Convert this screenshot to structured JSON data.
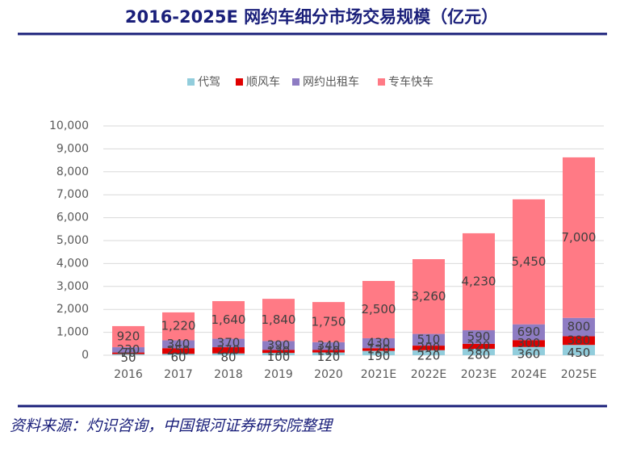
{
  "chart_data": {
    "type": "stacked_bar",
    "title": "2016-2025E 网约车细分市场交易规模（亿元）",
    "source": "资料来源：灼识咨询，中国银河证券研究院整理",
    "categories": [
      "2016",
      "2017",
      "2018",
      "2019",
      "2020",
      "2021E",
      "2022E",
      "2023E",
      "2024E",
      "2025E"
    ],
    "series": [
      {
        "name": "代驾",
        "color": "#92cddc",
        "values": [
          50,
          60,
          80,
          100,
          120,
          190,
          220,
          280,
          360,
          450
        ]
      },
      {
        "name": "顺风车",
        "color": "#e00000",
        "values": [
          70,
          250,
          270,
          130,
          110,
          120,
          200,
          220,
          300,
          380
        ]
      },
      {
        "name": "网约出租车",
        "color": "#8e7cc3",
        "values": [
          230,
          340,
          370,
          390,
          340,
          430,
          510,
          590,
          690,
          800
        ]
      },
      {
        "name": "专车快车",
        "color": "#ff7a85",
        "values": [
          920,
          1220,
          1640,
          1840,
          1750,
          2500,
          3260,
          4230,
          5450,
          7000
        ],
        "value_labels": [
          "920",
          "1,220",
          "1,640",
          "1,840",
          "1,750",
          "2,500",
          "3,260",
          "4,230",
          "5,450",
          "7,000"
        ]
      }
    ],
    "ylim": [
      0,
      10000
    ],
    "yticks": [
      0,
      {
        "value": 1000,
        "label": "1,000"
      },
      {
        "value": 2000,
        "label": "2,000"
      },
      {
        "value": 3000,
        "label": "3,000"
      },
      {
        "value": 4000,
        "label": "4,000"
      },
      {
        "value": 5000,
        "label": "5,000"
      },
      {
        "value": 6000,
        "label": "6,000"
      },
      {
        "value": 7000,
        "label": "7,000"
      },
      {
        "value": 8000,
        "label": "8,000"
      },
      {
        "value": 9000,
        "label": "9,000"
      },
      {
        "value": 10000,
        "label": "10,000"
      }
    ],
    "grid": true,
    "legend": "top"
  }
}
